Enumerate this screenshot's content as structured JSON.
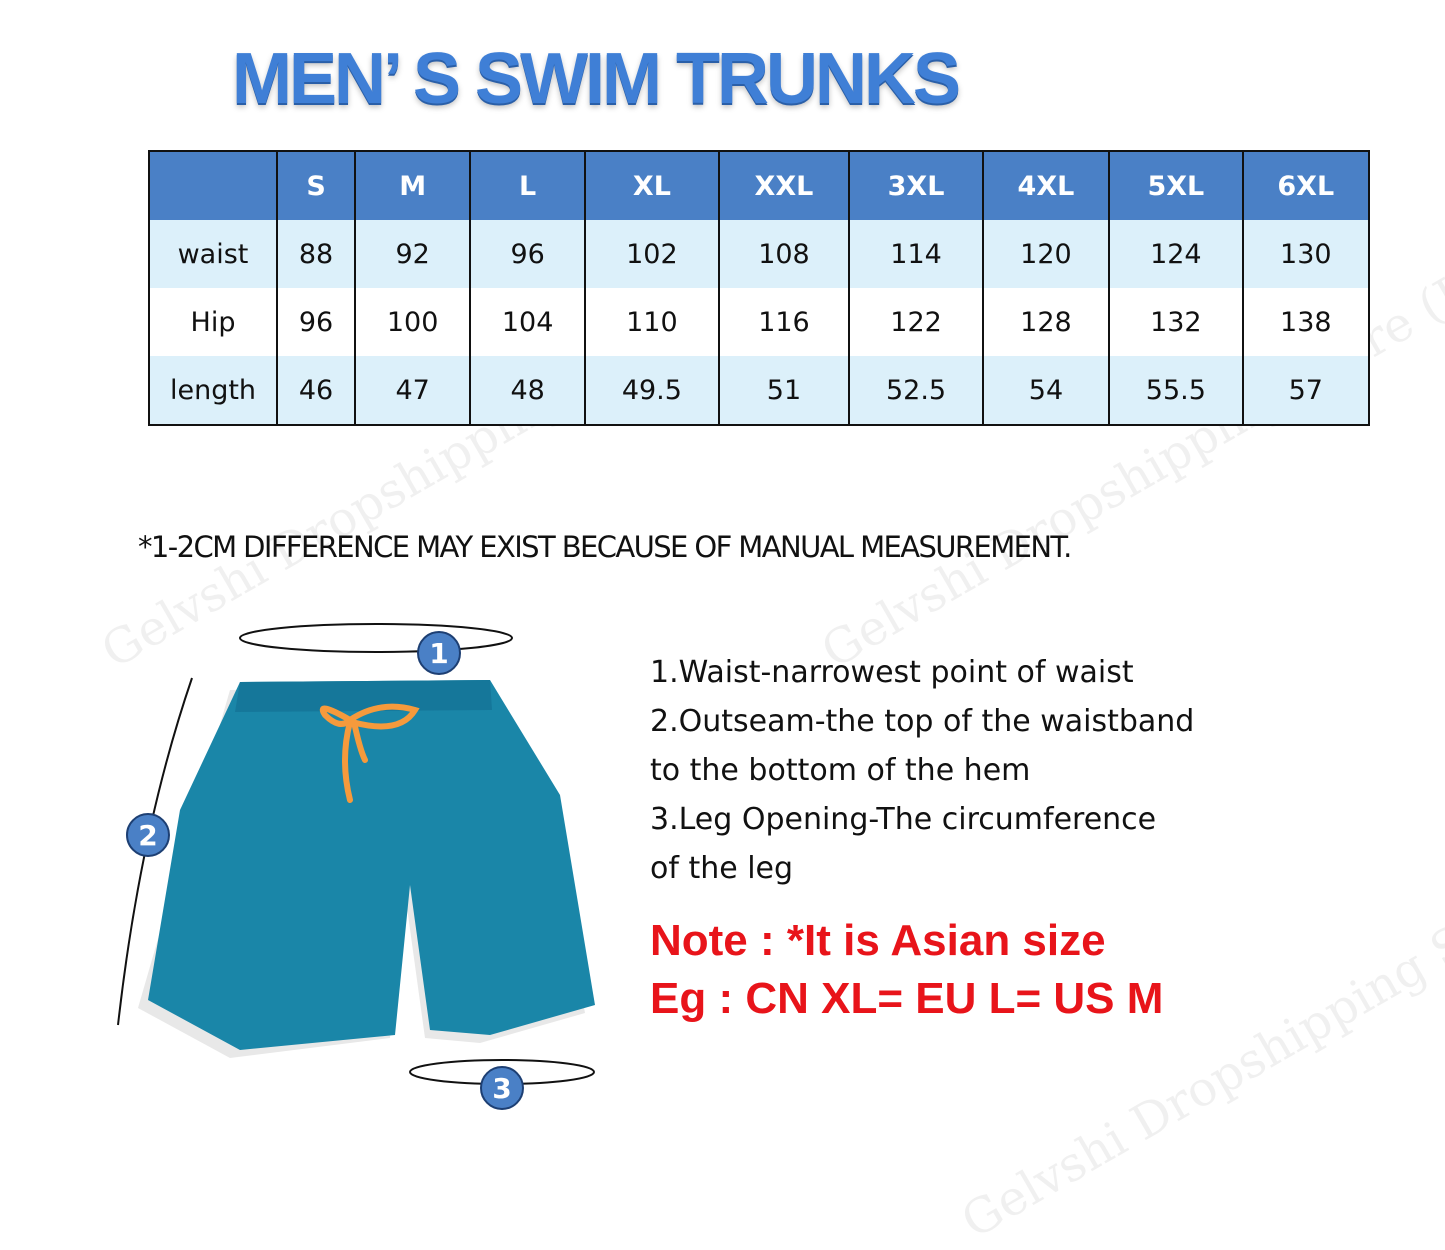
{
  "title": "MEN’ S SWIM TRUNKS",
  "size_table": {
    "headers": [
      "",
      "S",
      "M",
      "L",
      "XL",
      "XXL",
      "3XL",
      "4XL",
      "5XL",
      "6XL"
    ],
    "rows": [
      {
        "label": "waist",
        "values": [
          "88",
          "92",
          "96",
          "102",
          "108",
          "114",
          "120",
          "124",
          "130"
        ]
      },
      {
        "label": "Hip",
        "values": [
          "96",
          "100",
          "104",
          "110",
          "116",
          "122",
          "128",
          "132",
          "138"
        ]
      },
      {
        "label": "length",
        "values": [
          "46",
          "47",
          "48",
          "49.5",
          "51",
          "52.5",
          "54",
          "55.5",
          "57"
        ]
      }
    ]
  },
  "measurement_note": "*1-2CM DIFFERENCE MAY EXIST BECAUSE OF MANUAL MEASUREMENT.",
  "diagram": {
    "markers": [
      "1",
      "2",
      "3"
    ],
    "shorts_color": "#1a86a8",
    "drawstring_color": "#f59a3c"
  },
  "instructions": [
    "1.Waist-narrowest point of waist",
    "2.Outseam-the top of the waistband",
    "to the bottom of the hem",
    "3.Leg Opening-The circumference",
    "of the leg"
  ],
  "asian_note": {
    "line1": "Note : *It is Asian size",
    "line2": "Eg : CN XL= EU L= US M"
  },
  "watermark": "Gelvshi Dropshipping Store (Jeans Fritz)",
  "colors": {
    "title": "#3f7fd6",
    "header": "#4a80c6",
    "row_light": "#dcf0fa",
    "note_red": "#e8141a",
    "marker": "#4a80c6"
  }
}
